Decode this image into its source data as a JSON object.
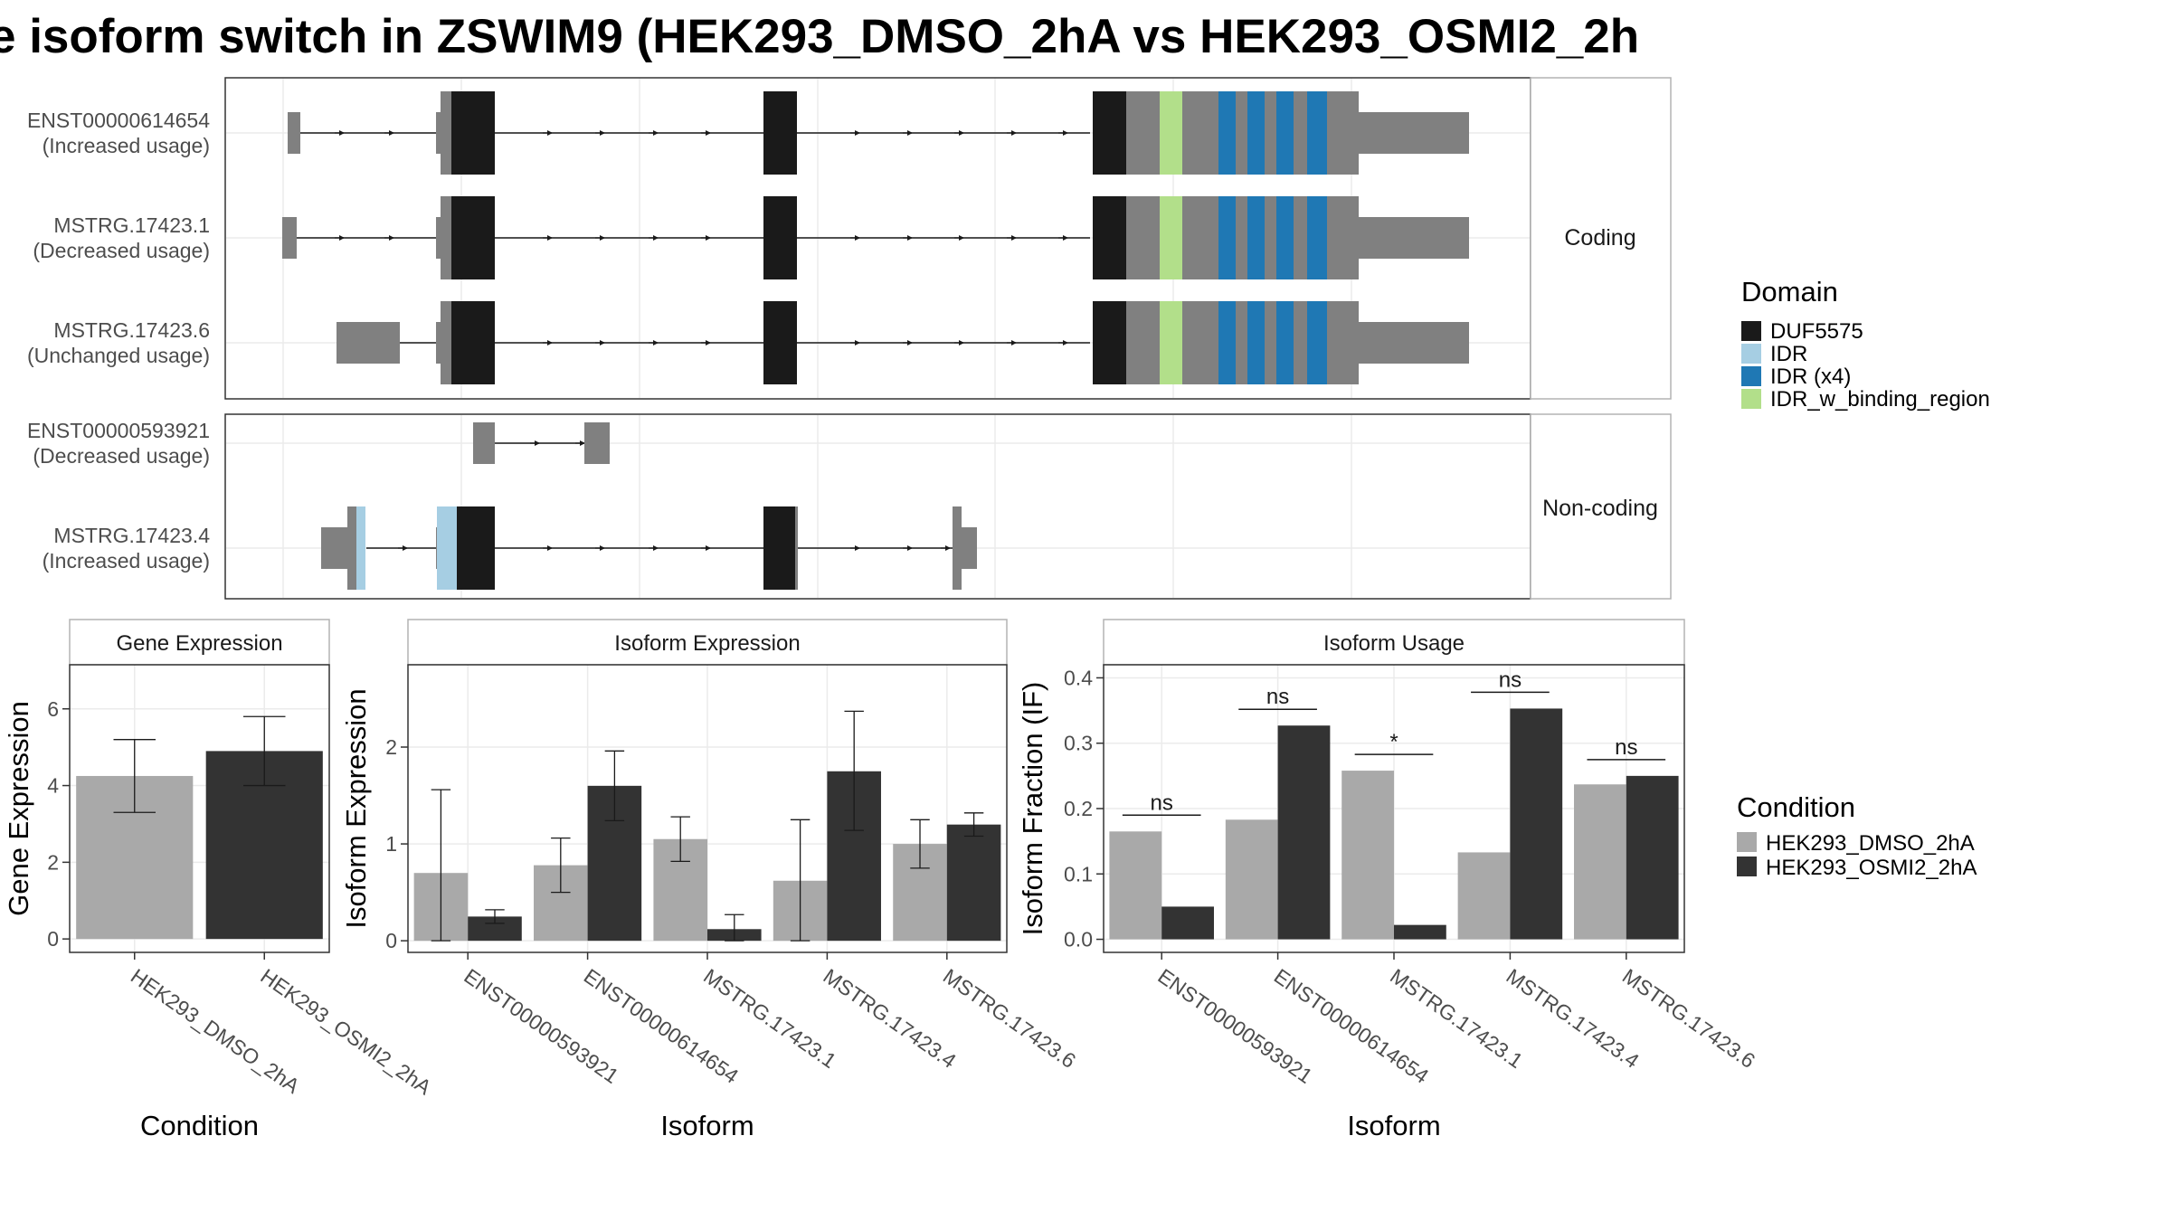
{
  "title": "e isoform switch in ZSWIM9 (HEK293_DMSO_2hA vs HEK293_OSMI2_2h",
  "colors": {
    "grey": "#808080",
    "black": "#1a1a1a",
    "idr": "#a6cee3",
    "idr_x4": "#1f78b4",
    "idr_binding": "#b2df8a",
    "cond1": "#a9a9a9",
    "cond2": "#333333",
    "grid": "#ebebeb",
    "panel_border": "#333333",
    "strip_border": "#b3b3b3"
  },
  "structure": {
    "facets": [
      {
        "label": "Coding",
        "isoforms": [
          {
            "id": "ENST00000614654",
            "usage": "(Increased usage)"
          },
          {
            "id": "MSTRG.17423.1",
            "usage": "(Decreased usage)"
          },
          {
            "id": "MSTRG.17423.6",
            "usage": "(Unchanged usage)"
          }
        ]
      },
      {
        "label": "Non-coding",
        "isoforms": [
          {
            "id": "ENST00000593921",
            "usage": "(Decreased usage)"
          },
          {
            "id": "MSTRG.17423.4",
            "usage": "(Increased usage)"
          }
        ]
      }
    ]
  },
  "legend_domain": {
    "title": "Domain",
    "items": [
      {
        "label": "DUF5575",
        "color": "#1a1a1a"
      },
      {
        "label": "IDR",
        "color": "#a6cee3"
      },
      {
        "label": "IDR (x4)",
        "color": "#1f78b4"
      },
      {
        "label": "IDR_w_binding_region",
        "color": "#b2df8a"
      }
    ]
  },
  "legend_condition": {
    "title": "Condition",
    "items": [
      {
        "label": "HEK293_DMSO_2hA",
        "color": "#a9a9a9"
      },
      {
        "label": "HEK293_OSMI2_2hA",
        "color": "#333333"
      }
    ]
  },
  "chart_data": [
    {
      "type": "bar",
      "title": "Gene Expression",
      "xlabel": "Condition",
      "ylabel": "Gene Expression",
      "categories": [
        "HEK293_DMSO_2hA",
        "HEK293_OSMI2_2hA"
      ],
      "values": [
        4.25,
        4.9
      ],
      "err_low": [
        3.3,
        4.0
      ],
      "err_high": [
        5.2,
        5.8
      ],
      "ylim": [
        -0.35,
        7.15
      ],
      "yticks": [
        0,
        2,
        4,
        6
      ]
    },
    {
      "type": "bar",
      "title": "Isoform Expression",
      "xlabel": "Isoform",
      "ylabel": "Isoform Expression",
      "categories": [
        "ENST00000593921",
        "ENST00000614654",
        "MSTRG.17423.1",
        "MSTRG.17423.4",
        "MSTRG.17423.6"
      ],
      "series": [
        {
          "name": "HEK293_DMSO_2hA",
          "values": [
            0.7,
            0.78,
            1.05,
            0.62,
            1.0
          ],
          "err_low": [
            0.0,
            0.5,
            0.82,
            0.0,
            0.75
          ],
          "err_high": [
            1.56,
            1.06,
            1.28,
            1.25,
            1.25
          ]
        },
        {
          "name": "HEK293_OSMI2_2hA",
          "values": [
            0.25,
            1.6,
            0.12,
            1.75,
            1.2
          ],
          "err_low": [
            0.18,
            1.24,
            0.0,
            1.14,
            1.08
          ],
          "err_high": [
            0.32,
            1.96,
            0.27,
            2.37,
            1.32
          ]
        }
      ],
      "ylim": [
        -0.12,
        2.85
      ],
      "yticks": [
        0,
        1,
        2
      ]
    },
    {
      "type": "bar",
      "title": "Isoform Usage",
      "xlabel": "Isoform",
      "ylabel": "Isoform Fraction (IF)",
      "categories": [
        "ENST00000593921",
        "ENST00000614654",
        "MSTRG.17423.1",
        "MSTRG.17423.4",
        "MSTRG.17423.6"
      ],
      "series": [
        {
          "name": "HEK293_DMSO_2hA",
          "values": [
            0.165,
            0.183,
            0.258,
            0.133,
            0.237
          ]
        },
        {
          "name": "HEK293_OSMI2_2hA",
          "values": [
            0.05,
            0.327,
            0.022,
            0.353,
            0.25
          ]
        }
      ],
      "significance": [
        "ns",
        "ns",
        "*",
        "ns",
        "ns"
      ],
      "ylim": [
        -0.02,
        0.42
      ],
      "yticks": [
        0.0,
        0.1,
        0.2,
        0.3,
        0.4
      ],
      "ytick_labels": [
        "0.0",
        "0.1",
        "0.2",
        "0.3",
        "0.4"
      ]
    }
  ]
}
